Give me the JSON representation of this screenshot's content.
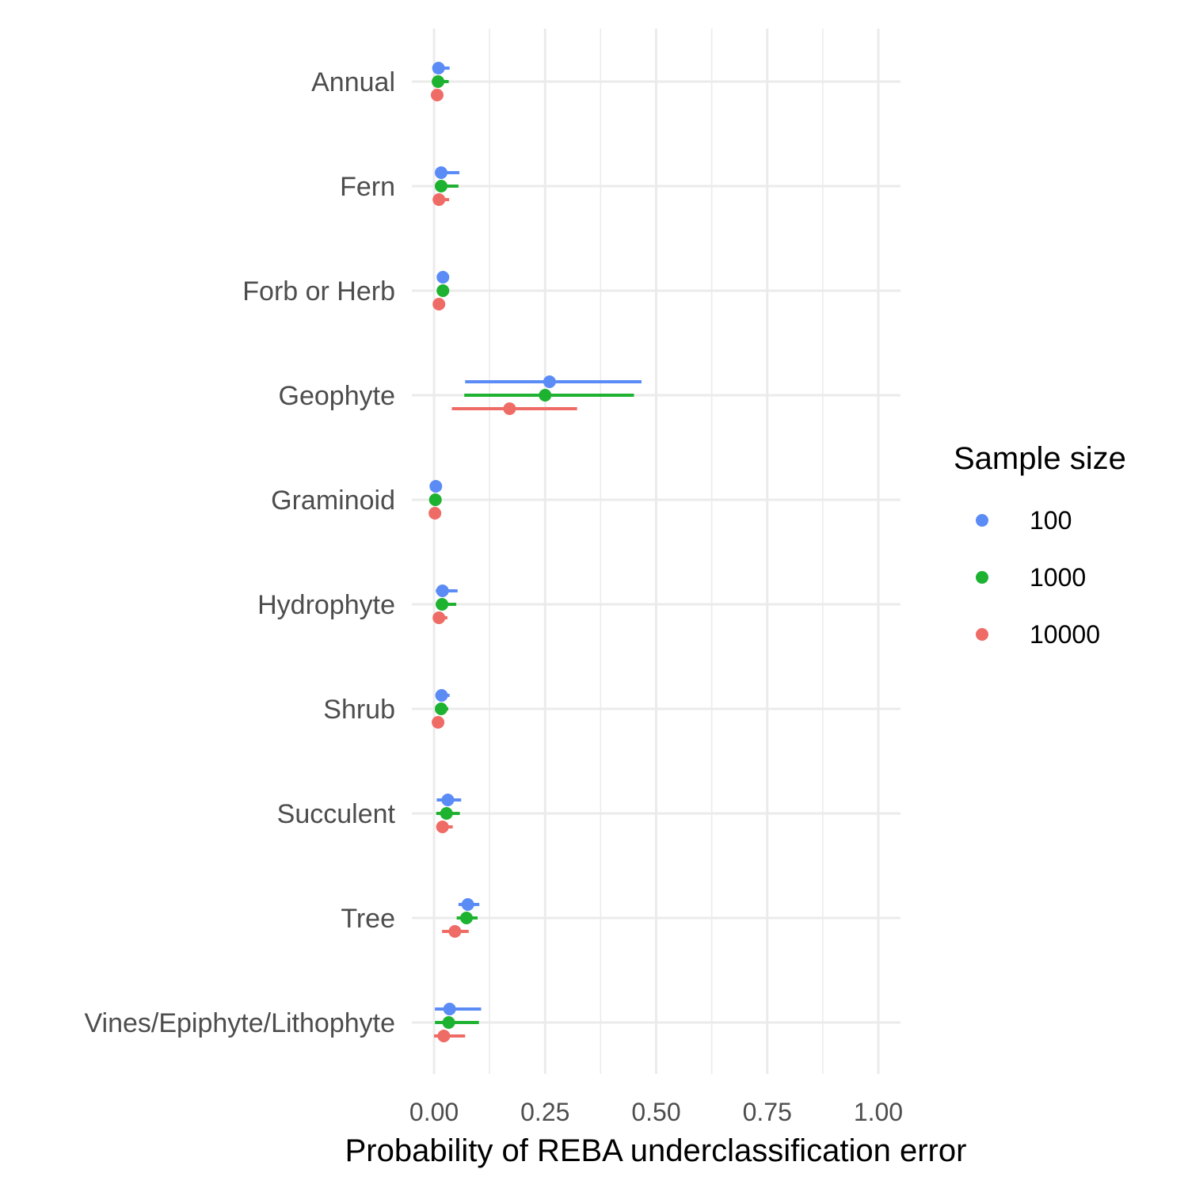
{
  "chart_data": {
    "type": "scatter",
    "subtype": "point-range (horizontal intervals)",
    "title": "",
    "xlabel": "Probability of REBA underclassification error",
    "ylabel": "",
    "xlim": [
      -0.05,
      1.05
    ],
    "x_ticks": [
      0.0,
      0.125,
      0.25,
      0.375,
      0.5,
      0.625,
      0.75,
      0.875,
      1.0
    ],
    "x_tick_labels": [
      "0.00",
      "",
      "0.25",
      "",
      "0.50",
      "",
      "0.75",
      "",
      "1.00"
    ],
    "grid": true,
    "legend": {
      "title": "Sample size",
      "position": "right"
    },
    "categories": [
      "Annual",
      "Fern",
      "Forb or Herb",
      "Geophyte",
      "Graminoid",
      "Hydrophyte",
      "Shrub",
      "Succulent",
      "Tree",
      "Vines/Epiphyte/Lithophyte"
    ],
    "series": [
      {
        "name": "100",
        "color": "#5b8cf6",
        "points": [
          {
            "estimate": 0.01,
            "low": 0.0,
            "high": 0.035
          },
          {
            "estimate": 0.016,
            "low": 0.003,
            "high": 0.057
          },
          {
            "estimate": 0.02,
            "low": 0.01,
            "high": 0.03
          },
          {
            "estimate": 0.26,
            "low": 0.07,
            "high": 0.467
          },
          {
            "estimate": 0.004,
            "low": 0.0,
            "high": 0.01
          },
          {
            "estimate": 0.019,
            "low": 0.004,
            "high": 0.053
          },
          {
            "estimate": 0.017,
            "low": 0.005,
            "high": 0.035
          },
          {
            "estimate": 0.031,
            "low": 0.006,
            "high": 0.061
          },
          {
            "estimate": 0.076,
            "low": 0.055,
            "high": 0.102
          },
          {
            "estimate": 0.035,
            "low": 0.002,
            "high": 0.106
          }
        ]
      },
      {
        "name": "1000",
        "color": "#1eb231",
        "points": [
          {
            "estimate": 0.009,
            "low": 0.0,
            "high": 0.033
          },
          {
            "estimate": 0.016,
            "low": 0.002,
            "high": 0.055
          },
          {
            "estimate": 0.02,
            "low": 0.01,
            "high": 0.03
          },
          {
            "estimate": 0.25,
            "low": 0.068,
            "high": 0.45
          },
          {
            "estimate": 0.003,
            "low": 0.0,
            "high": 0.01
          },
          {
            "estimate": 0.018,
            "low": 0.004,
            "high": 0.05
          },
          {
            "estimate": 0.016,
            "low": 0.004,
            "high": 0.032
          },
          {
            "estimate": 0.028,
            "low": 0.005,
            "high": 0.058
          },
          {
            "estimate": 0.073,
            "low": 0.051,
            "high": 0.098
          },
          {
            "estimate": 0.033,
            "low": 0.002,
            "high": 0.101
          }
        ]
      },
      {
        "name": "10000",
        "color": "#ef6b66",
        "points": [
          {
            "estimate": 0.007,
            "low": 0.0,
            "high": 0.02
          },
          {
            "estimate": 0.011,
            "low": 0.002,
            "high": 0.034
          },
          {
            "estimate": 0.011,
            "low": 0.004,
            "high": 0.022
          },
          {
            "estimate": 0.17,
            "low": 0.04,
            "high": 0.322
          },
          {
            "estimate": 0.002,
            "low": 0.0,
            "high": 0.006
          },
          {
            "estimate": 0.011,
            "low": 0.003,
            "high": 0.03
          },
          {
            "estimate": 0.009,
            "low": 0.002,
            "high": 0.02
          },
          {
            "estimate": 0.019,
            "low": 0.005,
            "high": 0.042
          },
          {
            "estimate": 0.047,
            "low": 0.018,
            "high": 0.078
          },
          {
            "estimate": 0.022,
            "low": 0.0,
            "high": 0.07
          }
        ]
      }
    ]
  }
}
